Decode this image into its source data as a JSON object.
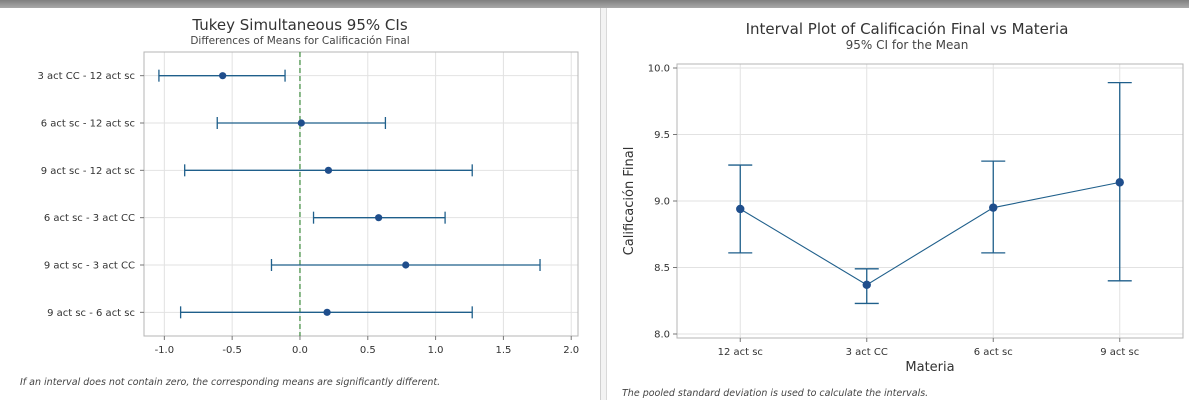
{
  "chart_data": [
    {
      "type": "interval",
      "title": "Tukey Simultaneous 95% CIs",
      "subtitle": "Differences of Means for Calificación Final",
      "xlabel": "",
      "ylabel": "",
      "categories": [
        "3 act CC - 12 act sc",
        "6 act sc - 12 act sc",
        "9 act sc - 12 act sc",
        "6 act sc - 3 act CC",
        "9 act sc - 3 act CC",
        "9 act sc - 6 act sc"
      ],
      "estimates": [
        -0.57,
        0.01,
        0.21,
        0.58,
        0.78,
        0.2
      ],
      "lower": [
        -1.04,
        -0.61,
        -0.85,
        0.1,
        -0.21,
        -0.88
      ],
      "upper": [
        -0.11,
        0.63,
        1.27,
        1.07,
        1.77,
        1.27
      ],
      "xlim": [
        -1.15,
        2.05
      ],
      "xticks": [
        "-1.0",
        "-0.5",
        "0.0",
        "0.5",
        "1.0",
        "1.5",
        "2.0"
      ],
      "reference_line": 0,
      "grid": true,
      "footnote": "If an interval does not contain zero, the corresponding means are significantly different.",
      "colors": {
        "interval": "#1f5f8b",
        "point": "#1f4e8c",
        "reference": "#3a8a3a",
        "grid": "#e2e2e2",
        "frame": "#b5b5b5"
      }
    },
    {
      "type": "interval",
      "title": "Interval Plot of Calificación Final vs Materia",
      "subtitle": "95% CI for the Mean",
      "xlabel": "Materia",
      "ylabel": "Calificación Final",
      "categories": [
        "12 act sc",
        "3 act CC",
        "6 act sc",
        "9 act sc"
      ],
      "means": [
        8.94,
        8.37,
        8.95,
        9.14
      ],
      "lower": [
        8.61,
        8.23,
        8.61,
        8.4
      ],
      "upper": [
        9.27,
        8.49,
        9.3,
        9.89
      ],
      "ylim": [
        7.97,
        10.03
      ],
      "yticks": [
        "8.0",
        "8.5",
        "9.0",
        "9.5",
        "10.0"
      ],
      "connect_means": true,
      "grid": true,
      "footnote": "The pooled standard deviation is used to calculate the intervals.",
      "colors": {
        "interval": "#1f5f8b",
        "point": "#1f4e8c",
        "grid": "#e2e2e2",
        "frame": "#b5b5b5"
      }
    }
  ]
}
